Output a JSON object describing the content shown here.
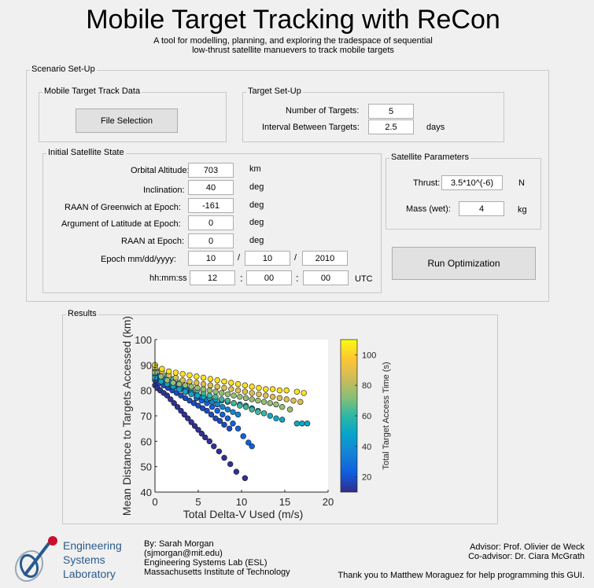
{
  "header": {
    "title": "Mobile Target Tracking with ReCon",
    "subtitle_line1": "A tool for modelling, planning, and exploring the tradespace of sequential",
    "subtitle_line2": "low-thrust satellite manuevers to track mobile targets"
  },
  "scenario": {
    "title": "Scenario Set-Up",
    "track_data": {
      "title": "Mobile Target Track Data",
      "file_button": "File Selection"
    },
    "target_setup": {
      "title": "Target Set-Up",
      "num_targets_label": "Number of Targets:",
      "num_targets_value": "5",
      "interval_label": "Interval Between Targets:",
      "interval_value": "2.5",
      "interval_unit": "days"
    },
    "sat_state": {
      "title": "Initial Satellite State",
      "altitude_label": "Orbital Altitude:",
      "altitude_value": "703",
      "altitude_unit": "km",
      "inclination_label": "Inclination:",
      "inclination_value": "40",
      "inclination_unit": "deg",
      "raan_greenwich_label": "RAAN of Greenwich at Epoch:",
      "raan_greenwich_value": "-161",
      "raan_greenwich_unit": "deg",
      "arg_lat_label": "Argument of Latitude at Epoch:",
      "arg_lat_value": "0",
      "arg_lat_unit": "deg",
      "raan_label": "RAAN at Epoch:",
      "raan_value": "0",
      "raan_unit": "deg",
      "epoch_label": "Epoch  mm/dd/yyyy:",
      "epoch_month": "10",
      "epoch_day": "10",
      "epoch_year": "2010",
      "date_sep": "/",
      "time_label": "hh:mm:ss",
      "time_hh": "12",
      "time_mm": "00",
      "time_ss": "00",
      "time_sep": ":",
      "time_unit": "UTC"
    },
    "sat_params": {
      "title": "Satellite Parameters",
      "thrust_label": "Thrust:",
      "thrust_value": "3.5*10^(-6)",
      "thrust_unit": "N",
      "mass_label": "Mass (wet):",
      "mass_value": "4",
      "mass_unit": "kg"
    },
    "run_button": "Run Optimization"
  },
  "results": {
    "title": "Results"
  },
  "chart_data": {
    "type": "scatter",
    "xlabel": "Total Delta-V Used (m/s)",
    "ylabel": "Mean Distance to Targets Accessed (km)",
    "xlim": [
      0,
      20
    ],
    "ylim": [
      40,
      100
    ],
    "xticks": [
      "0",
      "5",
      "10",
      "15",
      "20"
    ],
    "yticks": [
      "40",
      "50",
      "60",
      "70",
      "80",
      "90",
      "100"
    ],
    "colorbar": {
      "label": "Total Target Access Time (s)",
      "range": [
        10,
        110
      ],
      "ticks": [
        "20",
        "40",
        "60",
        "80",
        "100"
      ],
      "colormap": "parula"
    },
    "series": [
      {
        "c": 12,
        "x": [
          0,
          0.3,
          0.6,
          1.0,
          1.4,
          1.8,
          2.2,
          2.6,
          3.0,
          3.4,
          3.8,
          4.2,
          4.6,
          5.0,
          5.4,
          5.8,
          6.3,
          6.8,
          7.4,
          8.0,
          8.7,
          9.4,
          10.4
        ],
        "y": [
          82,
          81,
          80,
          79,
          78,
          76.5,
          75,
          73.5,
          72,
          70.5,
          69,
          67.5,
          66,
          64.5,
          63,
          61.5,
          60,
          58,
          56,
          53.5,
          51,
          48,
          45.5
        ]
      },
      {
        "c": 18,
        "x": [
          0,
          0.5,
          1.0,
          1.5,
          2.0,
          2.5,
          3.0,
          3.5,
          4.0,
          4.5,
          5.0,
          5.5,
          6.0,
          6.5,
          7.0,
          7.5,
          8.0,
          8.6
        ],
        "y": [
          84,
          83,
          82,
          81,
          80,
          79,
          78,
          77,
          76,
          75,
          74,
          73,
          72,
          70.5,
          69,
          68,
          66.5,
          65
        ]
      },
      {
        "c": 24,
        "x": [
          0,
          0.6,
          1.2,
          1.8,
          2.4,
          3.0,
          3.6,
          4.2,
          4.8,
          5.4,
          6.0,
          6.6,
          7.2,
          7.8,
          8.4,
          9.0,
          9.6,
          10.2,
          10.8,
          11.2
        ],
        "y": [
          86,
          84.5,
          83.5,
          82.5,
          81.5,
          80.5,
          79.5,
          78.5,
          77,
          76,
          75,
          73.5,
          72,
          70.5,
          69,
          67,
          65,
          62,
          59.5,
          58
        ]
      },
      {
        "c": 36,
        "x": [
          0,
          0.6,
          1.2,
          1.8,
          2.4,
          3.0,
          3.6,
          4.2,
          4.8,
          5.4,
          6.0,
          6.6,
          7.2,
          7.8,
          8.4,
          9.0,
          9.6
        ],
        "y": [
          88,
          86,
          84.5,
          83.5,
          82.5,
          81.5,
          80.5,
          79.5,
          78.5,
          77.5,
          76.5,
          75.5,
          74.5,
          73.5,
          72.5,
          71.5,
          70.5
        ]
      },
      {
        "c": 50,
        "x": [
          0,
          0.7,
          1.4,
          2.1,
          2.8,
          3.5,
          4.2,
          4.9,
          5.6,
          6.3,
          7.0,
          7.7,
          8.4,
          9.1,
          9.8,
          10.5,
          11.2,
          11.9,
          12.6,
          13.3,
          14.0,
          14.7,
          16.4,
          17.0,
          17.6
        ],
        "y": [
          85,
          83.5,
          82.5,
          81.5,
          80.5,
          79.5,
          78.5,
          78,
          77.5,
          77,
          76.5,
          76,
          75.5,
          75,
          74.5,
          74,
          73,
          72,
          71,
          70,
          69,
          68.5,
          67,
          67,
          67
        ]
      },
      {
        "c": 62,
        "x": [
          0,
          0.7,
          1.4,
          2.1,
          2.8,
          3.5,
          4.2,
          4.9,
          5.6,
          6.3,
          7.0,
          7.7,
          8.4,
          9.1,
          9.8,
          10.5,
          11.2,
          11.9,
          12.6
        ],
        "y": [
          90,
          88,
          86,
          84.5,
          83,
          82,
          81,
          80,
          79,
          78,
          77.5,
          76.5,
          76,
          75,
          74,
          73.5,
          72.5,
          71.5,
          71
        ]
      },
      {
        "c": 75,
        "x": [
          0,
          0.7,
          1.4,
          2.1,
          2.8,
          3.5,
          4.2,
          4.9,
          5.6,
          6.3,
          7.0,
          7.7,
          8.4,
          9.1,
          9.8,
          10.5,
          11.2,
          11.9,
          12.6,
          13.3,
          14.0,
          14.7,
          15.6
        ],
        "y": [
          87,
          85.5,
          84,
          83,
          82.5,
          82,
          81.5,
          81,
          80.5,
          80,
          79.5,
          79,
          78.5,
          78,
          77.5,
          77,
          76.5,
          76,
          75.5,
          75,
          74.5,
          73.5,
          72.5
        ]
      },
      {
        "c": 88,
        "x": [
          0,
          0.8,
          1.6,
          2.4,
          3.2,
          4.0,
          4.8,
          5.6,
          6.4,
          7.2,
          8.0,
          8.8,
          9.6,
          10.4,
          11.2,
          12.0,
          12.8,
          13.6,
          14.4,
          15.2,
          16.0,
          16.8
        ],
        "y": [
          89,
          87.5,
          86,
          85,
          84,
          83.5,
          83,
          82.5,
          82,
          81.5,
          81,
          80.5,
          80,
          79.5,
          79,
          78.5,
          78,
          77.5,
          77,
          76.5,
          76,
          75.5
        ]
      },
      {
        "c": 104,
        "x": [
          0,
          0.8,
          1.6,
          2.4,
          3.2,
          4.0,
          4.8,
          5.6,
          6.4,
          7.2,
          8.0,
          8.8,
          9.6,
          10.4,
          11.2,
          12.0,
          12.8,
          13.6,
          14.4,
          15.2,
          16.4,
          17.2
        ],
        "y": [
          90,
          88.5,
          87.5,
          87,
          86.5,
          86,
          85.5,
          85,
          84.5,
          84,
          83.5,
          83,
          82.5,
          82,
          81.5,
          81,
          80.5,
          80.5,
          80,
          80,
          79.5,
          79
        ]
      }
    ]
  },
  "footer": {
    "logo_line1": "Engineering",
    "logo_line2": "Systems",
    "logo_line3": "Laboratory",
    "author_line1": "By: Sarah Morgan",
    "author_line2": "(sjmorgan@mit.edu)",
    "author_line3": "Engineering Systems Lab (ESL)",
    "author_line4": "Massachusetts Institute of Technology",
    "advisor": "Advisor: Prof. Olivier de Weck",
    "coadvisor": "Co-advisor: Dr. Ciara McGrath",
    "thanks": "Thank you to Matthew Moraguez for help programming this GUI."
  },
  "colors": {
    "background": "#f0f0f0",
    "panel_border": "#c8c8c8",
    "button_face": "#e1e1e1",
    "logo_blue": "#2a5a8c",
    "logo_red": "#c8102e"
  }
}
